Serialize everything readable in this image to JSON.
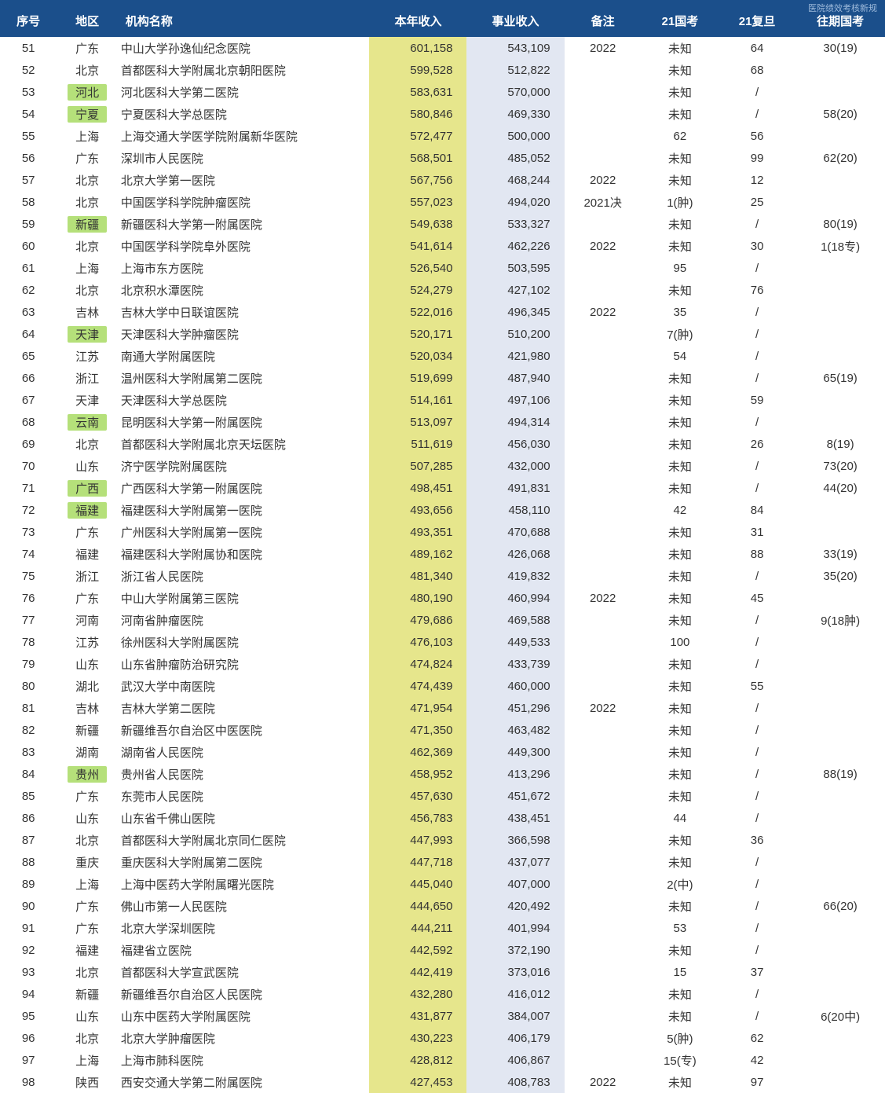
{
  "corner_note": "医院绩效考核新规",
  "columns": [
    {
      "key": "seq",
      "label": "序号"
    },
    {
      "key": "region",
      "label": "地区"
    },
    {
      "key": "name",
      "label": "机构名称"
    },
    {
      "key": "rev",
      "label": "本年收入"
    },
    {
      "key": "biz",
      "label": "事业收入"
    },
    {
      "key": "note",
      "label": "备注"
    },
    {
      "key": "gk",
      "label": "21国考"
    },
    {
      "key": "fd",
      "label": "21复旦"
    },
    {
      "key": "prev",
      "label": "往期国考"
    }
  ],
  "colors": {
    "header_bg": "#1b4f8b",
    "header_text": "#ffffff",
    "highlight_yellow": "#e6e68c",
    "highlight_green": "#b5e07a",
    "col_biz_bg": "#e2e7f2",
    "text": "#333333",
    "background": "#ffffff"
  },
  "rows": [
    {
      "seq": "51",
      "region": "广东",
      "name": "中山大学孙逸仙纪念医院",
      "rev": "601,158",
      "biz": "543,109",
      "note": "2022",
      "gk": "未知",
      "fd": "64",
      "prev": "30(19)"
    },
    {
      "seq": "52",
      "region": "北京",
      "name": "首都医科大学附属北京朝阳医院",
      "rev": "599,528",
      "biz": "512,822",
      "note": "",
      "gk": "未知",
      "fd": "68",
      "prev": ""
    },
    {
      "seq": "53",
      "region": "河北",
      "region_hl": true,
      "name": "河北医科大学第二医院",
      "rev": "583,631",
      "biz": "570,000",
      "note": "",
      "gk": "未知",
      "fd": "/",
      "prev": ""
    },
    {
      "seq": "54",
      "region": "宁夏",
      "region_hl": true,
      "name": "宁夏医科大学总医院",
      "rev": "580,846",
      "biz": "469,330",
      "note": "",
      "gk": "未知",
      "fd": "/",
      "prev": "58(20)"
    },
    {
      "seq": "55",
      "region": "上海",
      "name": "上海交通大学医学院附属新华医院",
      "rev": "572,477",
      "biz": "500,000",
      "note": "",
      "gk": "62",
      "fd": "56",
      "prev": ""
    },
    {
      "seq": "56",
      "region": "广东",
      "name": "深圳市人民医院",
      "rev": "568,501",
      "biz": "485,052",
      "note": "",
      "gk": "未知",
      "fd": "99",
      "prev": "62(20)"
    },
    {
      "seq": "57",
      "region": "北京",
      "name": "北京大学第一医院",
      "rev": "567,756",
      "biz": "468,244",
      "note": "2022",
      "gk": "未知",
      "fd": "12",
      "prev": ""
    },
    {
      "seq": "58",
      "region": "北京",
      "name": "中国医学科学院肿瘤医院",
      "rev": "557,023",
      "biz": "494,020",
      "note": "2021决",
      "gk": "1(肿)",
      "fd": "25",
      "prev": ""
    },
    {
      "seq": "59",
      "region": "新疆",
      "region_hl": true,
      "name": "新疆医科大学第一附属医院",
      "rev": "549,638",
      "biz": "533,327",
      "note": "",
      "gk": "未知",
      "fd": "/",
      "prev": "80(19)"
    },
    {
      "seq": "60",
      "region": "北京",
      "name": "中国医学科学院阜外医院",
      "rev": "541,614",
      "biz": "462,226",
      "note": "2022",
      "gk": "未知",
      "fd": "30",
      "prev": "1(18专)"
    },
    {
      "seq": "61",
      "region": "上海",
      "name": "上海市东方医院",
      "rev": "526,540",
      "biz": "503,595",
      "note": "",
      "gk": "95",
      "fd": "/",
      "prev": ""
    },
    {
      "seq": "62",
      "region": "北京",
      "name": "北京积水潭医院",
      "rev": "524,279",
      "biz": "427,102",
      "note": "",
      "gk": "未知",
      "fd": "76",
      "prev": ""
    },
    {
      "seq": "63",
      "region": "吉林",
      "name": "吉林大学中日联谊医院",
      "rev": "522,016",
      "biz": "496,345",
      "note": "2022",
      "gk": "35",
      "fd": "/",
      "prev": ""
    },
    {
      "seq": "64",
      "region": "天津",
      "region_hl": true,
      "name": "天津医科大学肿瘤医院",
      "rev": "520,171",
      "biz": "510,200",
      "note": "",
      "gk": "7(肿)",
      "fd": "/",
      "prev": ""
    },
    {
      "seq": "65",
      "region": "江苏",
      "name": "南通大学附属医院",
      "rev": "520,034",
      "biz": "421,980",
      "note": "",
      "gk": "54",
      "fd": "/",
      "prev": ""
    },
    {
      "seq": "66",
      "region": "浙江",
      "name": "温州医科大学附属第二医院",
      "rev": "519,699",
      "biz": "487,940",
      "note": "",
      "gk": "未知",
      "fd": "/",
      "prev": "65(19)"
    },
    {
      "seq": "67",
      "region": "天津",
      "name": "天津医科大学总医院",
      "rev": "514,161",
      "biz": "497,106",
      "note": "",
      "gk": "未知",
      "fd": "59",
      "prev": ""
    },
    {
      "seq": "68",
      "region": "云南",
      "region_hl": true,
      "name": "昆明医科大学第一附属医院",
      "rev": "513,097",
      "biz": "494,314",
      "note": "",
      "gk": "未知",
      "fd": "/",
      "prev": ""
    },
    {
      "seq": "69",
      "region": "北京",
      "name": "首都医科大学附属北京天坛医院",
      "rev": "511,619",
      "biz": "456,030",
      "note": "",
      "gk": "未知",
      "fd": "26",
      "prev": "8(19)"
    },
    {
      "seq": "70",
      "region": "山东",
      "name": "济宁医学院附属医院",
      "rev": "507,285",
      "biz": "432,000",
      "note": "",
      "gk": "未知",
      "fd": "/",
      "prev": "73(20)"
    },
    {
      "seq": "71",
      "region": "广西",
      "region_hl": true,
      "name": "广西医科大学第一附属医院",
      "rev": "498,451",
      "biz": "491,831",
      "note": "",
      "gk": "未知",
      "fd": "/",
      "prev": "44(20)"
    },
    {
      "seq": "72",
      "region": "福建",
      "region_hl": true,
      "name": "福建医科大学附属第一医院",
      "rev": "493,656",
      "biz": "458,110",
      "note": "",
      "gk": "42",
      "fd": "84",
      "prev": ""
    },
    {
      "seq": "73",
      "region": "广东",
      "name": "广州医科大学附属第一医院",
      "rev": "493,351",
      "biz": "470,688",
      "note": "",
      "gk": "未知",
      "fd": "31",
      "prev": ""
    },
    {
      "seq": "74",
      "region": "福建",
      "name": "福建医科大学附属协和医院",
      "rev": "489,162",
      "biz": "426,068",
      "note": "",
      "gk": "未知",
      "fd": "88",
      "prev": "33(19)"
    },
    {
      "seq": "75",
      "region": "浙江",
      "name": "浙江省人民医院",
      "rev": "481,340",
      "biz": "419,832",
      "note": "",
      "gk": "未知",
      "fd": "/",
      "prev": "35(20)"
    },
    {
      "seq": "76",
      "region": "广东",
      "name": "中山大学附属第三医院",
      "rev": "480,190",
      "biz": "460,994",
      "note": "2022",
      "gk": "未知",
      "fd": "45",
      "prev": ""
    },
    {
      "seq": "77",
      "region": "河南",
      "name": "河南省肿瘤医院",
      "rev": "479,686",
      "biz": "469,588",
      "note": "",
      "gk": "未知",
      "fd": "/",
      "prev": "9(18肿)"
    },
    {
      "seq": "78",
      "region": "江苏",
      "name": "徐州医科大学附属医院",
      "rev": "476,103",
      "biz": "449,533",
      "note": "",
      "gk": "100",
      "fd": "/",
      "prev": ""
    },
    {
      "seq": "79",
      "region": "山东",
      "name": "山东省肿瘤防治研究院",
      "rev": "474,824",
      "biz": "433,739",
      "note": "",
      "gk": "未知",
      "fd": "/",
      "prev": ""
    },
    {
      "seq": "80",
      "region": "湖北",
      "name": "武汉大学中南医院",
      "rev": "474,439",
      "biz": "460,000",
      "note": "",
      "gk": "未知",
      "fd": "55",
      "prev": ""
    },
    {
      "seq": "81",
      "region": "吉林",
      "name": "吉林大学第二医院",
      "rev": "471,954",
      "biz": "451,296",
      "note": "2022",
      "gk": "未知",
      "fd": "/",
      "prev": ""
    },
    {
      "seq": "82",
      "region": "新疆",
      "name": "新疆维吾尔自治区中医医院",
      "rev": "471,350",
      "biz": "463,482",
      "note": "",
      "gk": "未知",
      "fd": "/",
      "prev": ""
    },
    {
      "seq": "83",
      "region": "湖南",
      "name": "湖南省人民医院",
      "rev": "462,369",
      "biz": "449,300",
      "note": "",
      "gk": "未知",
      "fd": "/",
      "prev": ""
    },
    {
      "seq": "84",
      "region": "贵州",
      "region_hl": true,
      "name": "贵州省人民医院",
      "rev": "458,952",
      "biz": "413,296",
      "note": "",
      "gk": "未知",
      "fd": "/",
      "prev": "88(19)"
    },
    {
      "seq": "85",
      "region": "广东",
      "name": "东莞市人民医院",
      "rev": "457,630",
      "biz": "451,672",
      "note": "",
      "gk": "未知",
      "fd": "/",
      "prev": ""
    },
    {
      "seq": "86",
      "region": "山东",
      "name": "山东省千佛山医院",
      "rev": "456,783",
      "biz": "438,451",
      "note": "",
      "gk": "44",
      "fd": "/",
      "prev": ""
    },
    {
      "seq": "87",
      "region": "北京",
      "name": "首都医科大学附属北京同仁医院",
      "rev": "447,993",
      "biz": "366,598",
      "note": "",
      "gk": "未知",
      "fd": "36",
      "prev": ""
    },
    {
      "seq": "88",
      "region": "重庆",
      "name": "重庆医科大学附属第二医院",
      "rev": "447,718",
      "biz": "437,077",
      "note": "",
      "gk": "未知",
      "fd": "/",
      "prev": ""
    },
    {
      "seq": "89",
      "region": "上海",
      "name": "上海中医药大学附属曙光医院",
      "rev": "445,040",
      "biz": "407,000",
      "note": "",
      "gk": "2(中)",
      "fd": "/",
      "prev": ""
    },
    {
      "seq": "90",
      "region": "广东",
      "name": "佛山市第一人民医院",
      "rev": "444,650",
      "biz": "420,492",
      "note": "",
      "gk": "未知",
      "fd": "/",
      "prev": "66(20)"
    },
    {
      "seq": "91",
      "region": "广东",
      "name": "北京大学深圳医院",
      "rev": "444,211",
      "biz": "401,994",
      "note": "",
      "gk": "53",
      "fd": "/",
      "prev": ""
    },
    {
      "seq": "92",
      "region": "福建",
      "name": "福建省立医院",
      "rev": "442,592",
      "biz": "372,190",
      "note": "",
      "gk": "未知",
      "fd": "/",
      "prev": ""
    },
    {
      "seq": "93",
      "region": "北京",
      "name": "首都医科大学宣武医院",
      "rev": "442,419",
      "biz": "373,016",
      "note": "",
      "gk": "15",
      "fd": "37",
      "prev": ""
    },
    {
      "seq": "94",
      "region": "新疆",
      "name": "新疆维吾尔自治区人民医院",
      "rev": "432,280",
      "biz": "416,012",
      "note": "",
      "gk": "未知",
      "fd": "/",
      "prev": ""
    },
    {
      "seq": "95",
      "region": "山东",
      "name": "山东中医药大学附属医院",
      "rev": "431,877",
      "biz": "384,007",
      "note": "",
      "gk": "未知",
      "fd": "/",
      "prev": "6(20中)"
    },
    {
      "seq": "96",
      "region": "北京",
      "name": "北京大学肿瘤医院",
      "rev": "430,223",
      "biz": "406,179",
      "note": "",
      "gk": "5(肿)",
      "fd": "62",
      "prev": ""
    },
    {
      "seq": "97",
      "region": "上海",
      "name": "上海市肺科医院",
      "rev": "428,812",
      "biz": "406,867",
      "note": "",
      "gk": "15(专)",
      "fd": "42",
      "prev": ""
    },
    {
      "seq": "98",
      "region": "陕西",
      "name": "西安交通大学第二附属医院",
      "rev": "427,453",
      "biz": "408,783",
      "note": "2022",
      "gk": "未知",
      "fd": "97",
      "prev": ""
    }
  ]
}
